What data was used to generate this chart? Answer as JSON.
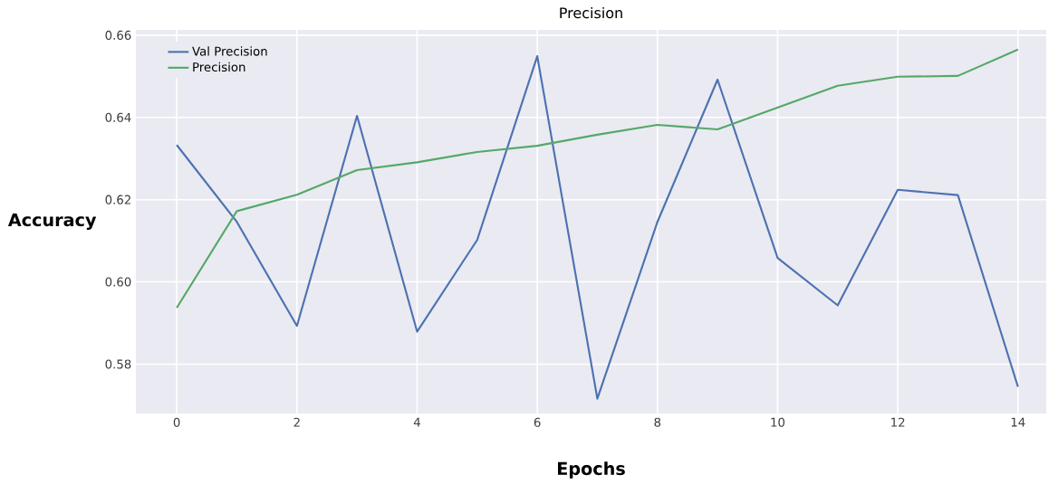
{
  "chart_data": {
    "type": "line",
    "title": "Precision",
    "xlabel": "Epochs",
    "ylabel": "Accuracy",
    "x": [
      0,
      1,
      2,
      3,
      4,
      5,
      6,
      7,
      8,
      9,
      10,
      11,
      12,
      13,
      14
    ],
    "series": [
      {
        "name": "Val Precision",
        "color": "#4c72b0",
        "values": [
          0.6333,
          0.6146,
          0.5893,
          0.6404,
          0.5879,
          0.6102,
          0.6549,
          0.5716,
          0.6146,
          0.6492,
          0.6058,
          0.5943,
          0.6224,
          0.6211,
          0.5745
        ]
      },
      {
        "name": "Precision",
        "color": "#55a868",
        "values": [
          0.5937,
          0.6172,
          0.6212,
          0.6272,
          0.6291,
          0.6316,
          0.6331,
          0.6358,
          0.6382,
          0.6371,
          0.6424,
          0.6477,
          0.6499,
          0.6501,
          0.6565
        ]
      }
    ],
    "xlim": [
      -0.68,
      14.47
    ],
    "ylim": [
      0.568,
      0.6613
    ],
    "xticks": [
      0,
      2,
      4,
      6,
      8,
      10,
      12,
      14
    ],
    "yticks": [
      0.58,
      {
        "value": 0.6,
        "label": "0.60"
      },
      0.62,
      0.64,
      0.66
    ],
    "grid": true,
    "legend": "top left",
    "marker": "none",
    "line_style": "solid"
  }
}
